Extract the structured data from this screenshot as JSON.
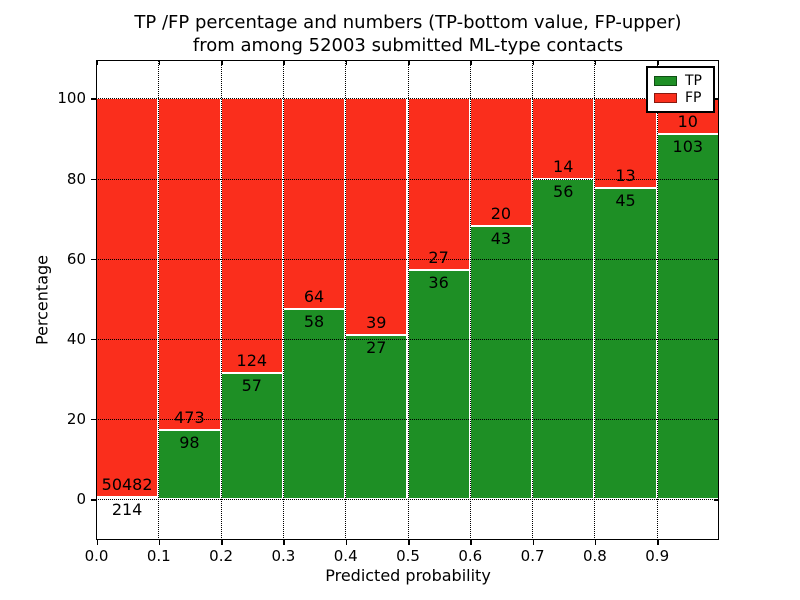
{
  "title": {
    "line1": "TP /FP percentage and numbers (TP-bottom value, FP-upper)",
    "line2": "from among 52003 submitted ML-type contacts"
  },
  "axes": {
    "xlabel": "Predicted probability",
    "ylabel": "Percentage",
    "x_tick_labels": [
      "0.0",
      "0.1",
      "0.2",
      "0.3",
      "0.4",
      "0.5",
      "0.6",
      "0.7",
      "0.8",
      "0.9"
    ],
    "y_tick_labels": [
      "0",
      "20",
      "40",
      "60",
      "80",
      "100"
    ]
  },
  "legend": {
    "items": [
      {
        "label": "TP",
        "color": "#1e8f25"
      },
      {
        "label": "FP",
        "color": "#fa2e1c"
      }
    ]
  },
  "colors": {
    "tp_green": "#1e8f25",
    "fp_red": "#fa2e1c",
    "grid": "#000000",
    "background": "#ffffff"
  },
  "chart_data": {
    "type": "bar",
    "stacked": true,
    "normalized_to_percent": true,
    "title": "TP /FP percentage and numbers (TP-bottom value, FP-upper) from among 52003 submitted ML-type contacts",
    "xlabel": "Predicted probability",
    "ylabel": "Percentage",
    "bin_edges": [
      0.0,
      0.1,
      0.2,
      0.3,
      0.4,
      0.5,
      0.6,
      0.7,
      0.8,
      0.9,
      1.0
    ],
    "series": [
      {
        "name": "TP",
        "color": "#1e8f25",
        "counts": [
          214,
          98,
          57,
          58,
          27,
          36,
          43,
          56,
          45,
          103
        ],
        "percent_of_bin": [
          0.42,
          17.16,
          31.49,
          47.54,
          40.91,
          57.14,
          68.25,
          80.0,
          77.59,
          91.15
        ]
      },
      {
        "name": "FP",
        "color": "#fa2e1c",
        "counts": [
          50482,
          473,
          124,
          64,
          39,
          27,
          20,
          14,
          13,
          10
        ],
        "percent_of_bin": [
          99.58,
          82.84,
          68.51,
          52.46,
          59.09,
          42.86,
          31.75,
          20.0,
          22.41,
          8.85
        ]
      }
    ],
    "bar_value_labels": "counts shown on bars: TP count just below TP/FP boundary, FP count just above it",
    "xlim": [
      0.0,
      1.0
    ],
    "ylim": [
      -10.2,
      109.6
    ],
    "xticks": [
      0.0,
      0.1,
      0.2,
      0.3,
      0.4,
      0.5,
      0.6,
      0.7,
      0.8,
      0.9
    ],
    "yticks": [
      0,
      20,
      40,
      60,
      80,
      100
    ],
    "grid": true,
    "grid_style": "dotted",
    "legend_position": "upper right"
  }
}
